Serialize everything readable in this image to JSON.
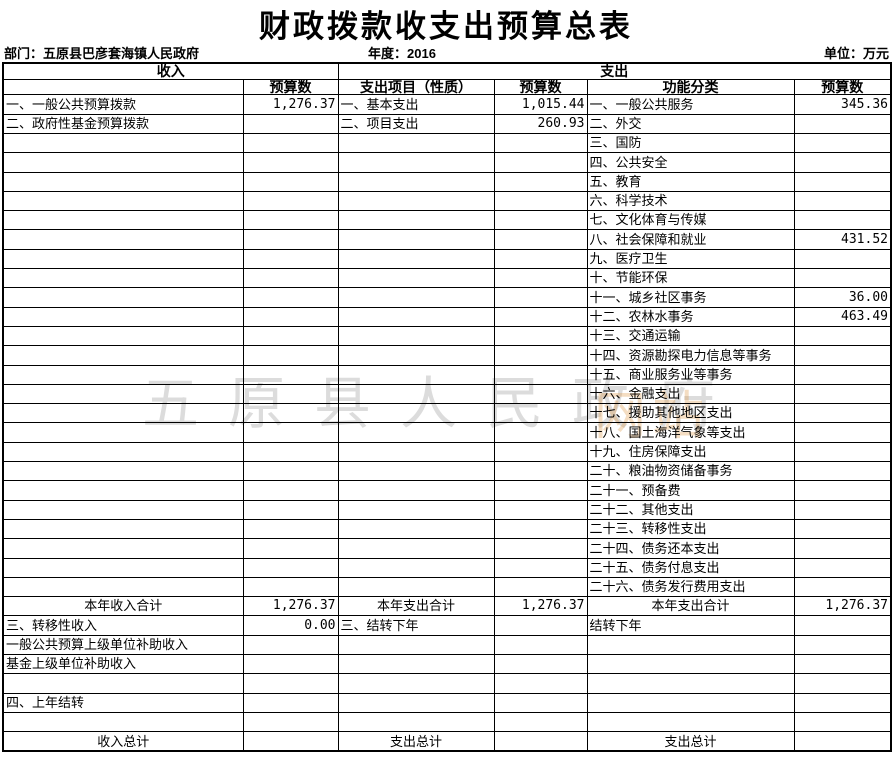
{
  "title": "财政拨款收支出预算总表",
  "meta": {
    "department": "部门：五原县巴彦套海镇人民政府",
    "year": "年度：2016",
    "unit": "单位：万元"
  },
  "watermark": {
    "gray_text": "五原县人民政府",
    "orange_text": "网站",
    "gray_color": "#5f5f5f",
    "orange_color": "#de9640"
  },
  "table": {
    "group_headers": {
      "income": "收入",
      "expenditure": "支出"
    },
    "col_headers": {
      "income_item": "",
      "income_budget": "预算数",
      "exp_item": "支出项目（性质）",
      "exp_budget": "预算数",
      "func_class": "功能分类",
      "func_budget": "预算数"
    },
    "rows": [
      {
        "cells": [
          "一、一般公共预算拨款",
          "1,276.37",
          "一、基本支出",
          "1,015.44",
          "一、一般公共服务",
          "345.36"
        ],
        "style": ""
      },
      {
        "cells": [
          "二、政府性基金预算拨款",
          "",
          "二、项目支出",
          "260.93",
          "二、外交",
          ""
        ],
        "style": ""
      },
      {
        "cells": [
          "",
          "",
          "",
          "",
          "三、国防",
          ""
        ],
        "style": ""
      },
      {
        "cells": [
          "",
          "",
          "",
          "",
          "四、公共安全",
          ""
        ],
        "style": ""
      },
      {
        "cells": [
          "",
          "",
          "",
          "",
          "五、教育",
          ""
        ],
        "style": ""
      },
      {
        "cells": [
          "",
          "",
          "",
          "",
          "六、科学技术",
          ""
        ],
        "style": ""
      },
      {
        "cells": [
          "",
          "",
          "",
          "",
          "七、文化体育与传媒",
          ""
        ],
        "style": ""
      },
      {
        "cells": [
          "",
          "",
          "",
          "",
          "八、社会保障和就业",
          "431.52"
        ],
        "style": ""
      },
      {
        "cells": [
          "",
          "",
          "",
          "",
          "九、医疗卫生",
          ""
        ],
        "style": ""
      },
      {
        "cells": [
          "",
          "",
          "",
          "",
          "十、节能环保",
          ""
        ],
        "style": ""
      },
      {
        "cells": [
          "",
          "",
          "",
          "",
          "十一、城乡社区事务",
          "36.00"
        ],
        "style": ""
      },
      {
        "cells": [
          "",
          "",
          "",
          "",
          "十二、农林水事务",
          "463.49"
        ],
        "style": ""
      },
      {
        "cells": [
          "",
          "",
          "",
          "",
          "十三、交通运输",
          ""
        ],
        "style": ""
      },
      {
        "cells": [
          "",
          "",
          "",
          "",
          "十四、资源勘探电力信息等事务",
          ""
        ],
        "style": ""
      },
      {
        "cells": [
          "",
          "",
          "",
          "",
          "十五、商业服务业等事务",
          ""
        ],
        "style": ""
      },
      {
        "cells": [
          "",
          "",
          "",
          "",
          "十六、金融支出",
          ""
        ],
        "style": ""
      },
      {
        "cells": [
          "",
          "",
          "",
          "",
          "十七、援助其他地区支出",
          ""
        ],
        "style": ""
      },
      {
        "cells": [
          "",
          "",
          "",
          "",
          "十八、国土海洋气象等支出",
          ""
        ],
        "style": ""
      },
      {
        "cells": [
          "",
          "",
          "",
          "",
          "十九、住房保障支出",
          ""
        ],
        "style": ""
      },
      {
        "cells": [
          "",
          "",
          "",
          "",
          "二十、粮油物资储备事务",
          ""
        ],
        "style": ""
      },
      {
        "cells": [
          "",
          "",
          "",
          "",
          "二十一、预备费",
          ""
        ],
        "style": ""
      },
      {
        "cells": [
          "",
          "",
          "",
          "",
          "二十二、其他支出",
          ""
        ],
        "style": ""
      },
      {
        "cells": [
          "",
          "",
          "",
          "",
          "二十三、转移性支出",
          ""
        ],
        "style": ""
      },
      {
        "cells": [
          "",
          "",
          "",
          "",
          "二十四、债务还本支出",
          ""
        ],
        "style": ""
      },
      {
        "cells": [
          "",
          "",
          "",
          "",
          "二十五、债务付息支出",
          ""
        ],
        "style": ""
      },
      {
        "cells": [
          "",
          "",
          "",
          "",
          "二十六、债务发行费用支出",
          ""
        ],
        "style": ""
      },
      {
        "cells": [
          "本年收入合计",
          "1,276.37",
          "本年支出合计",
          "1,276.37",
          "本年支出合计",
          "1,276.37"
        ],
        "style": "center"
      },
      {
        "cells": [
          "三、转移性收入",
          "0.00",
          "三、结转下年",
          "",
          "结转下年",
          ""
        ],
        "style": ""
      },
      {
        "cells": [
          "一般公共预算上级单位补助收入",
          "",
          "",
          "",
          "",
          ""
        ],
        "style": "indent"
      },
      {
        "cells": [
          "基金上级单位补助收入",
          "",
          "",
          "",
          "",
          ""
        ],
        "style": "indent"
      },
      {
        "cells": [
          "",
          "",
          "",
          "",
          "",
          ""
        ],
        "style": ""
      },
      {
        "cells": [
          "四、上年结转",
          "",
          "",
          "",
          "",
          ""
        ],
        "style": ""
      },
      {
        "cells": [
          "",
          "",
          "",
          "",
          "",
          ""
        ],
        "style": ""
      },
      {
        "cells": [
          "收入总计",
          "",
          "支出总计",
          "",
          "支出总计",
          ""
        ],
        "style": "center"
      }
    ]
  }
}
